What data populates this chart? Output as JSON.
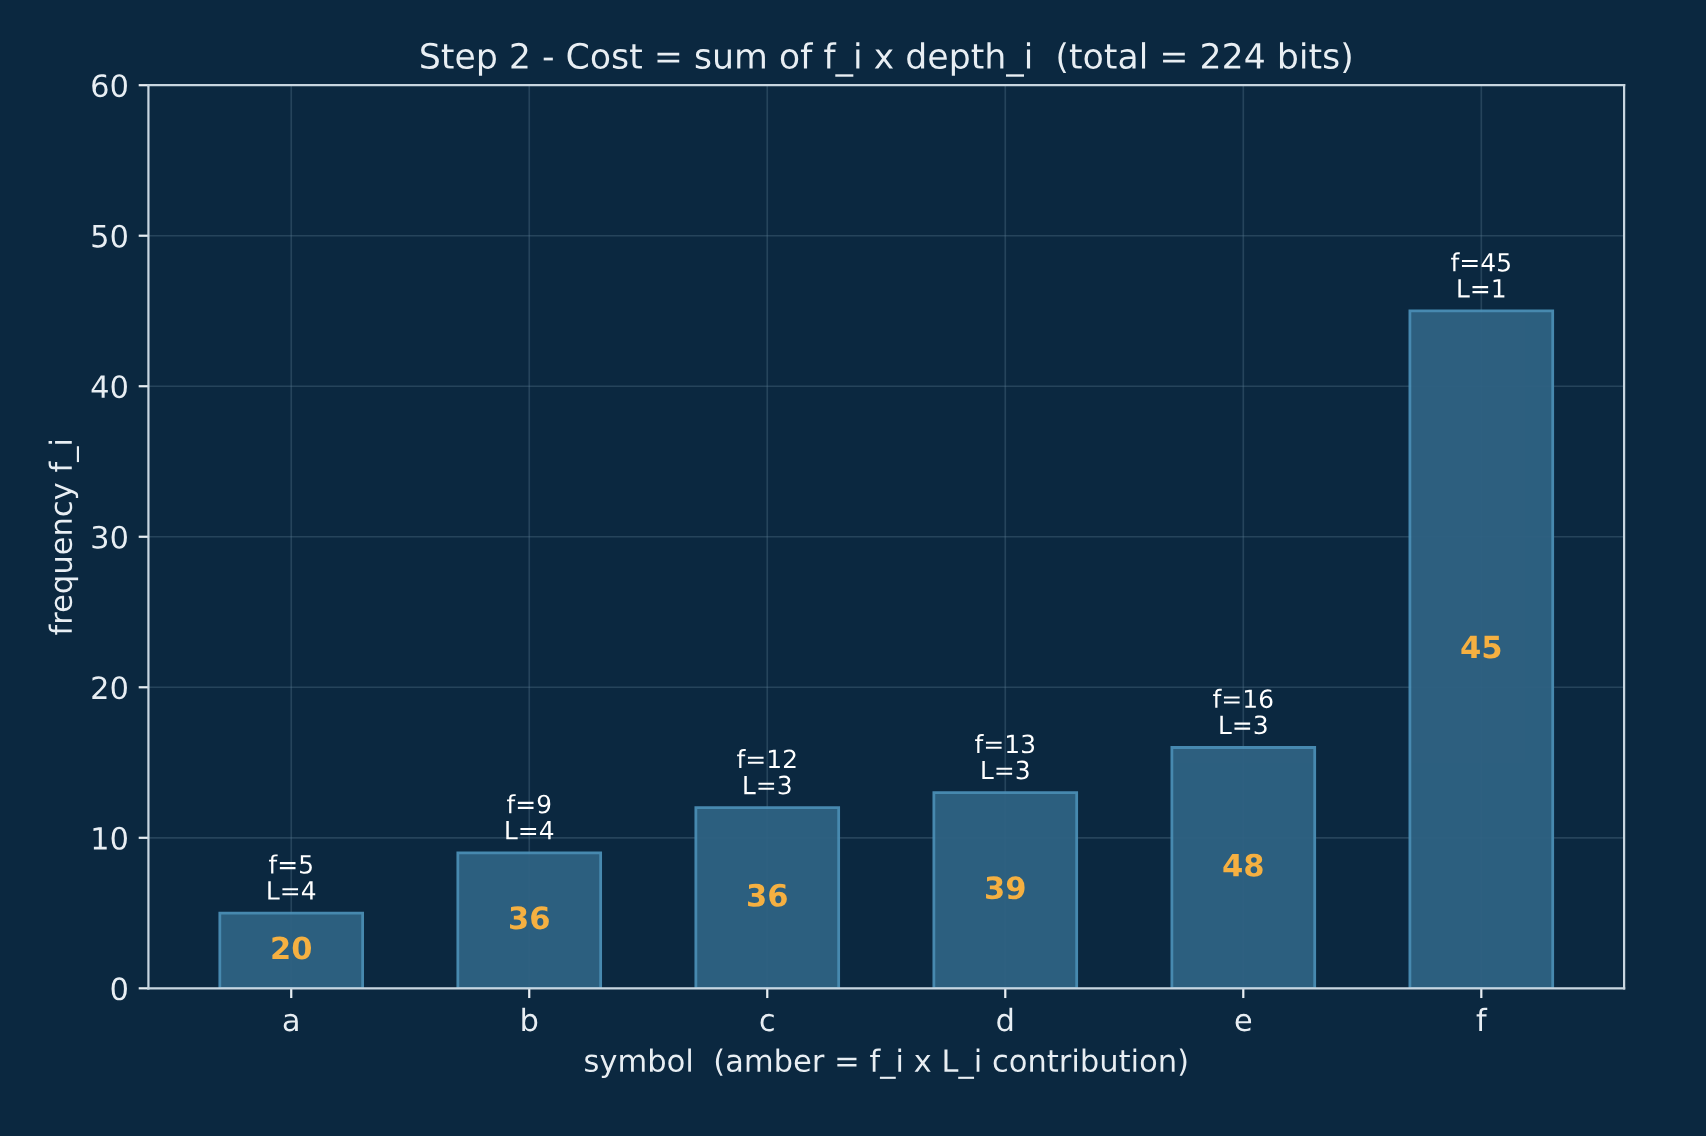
{
  "chart_data": {
    "type": "bar",
    "title": "Step 2 - Cost = sum of f_i x depth_i  (total = 224 bits)",
    "xlabel": "symbol  (amber = f_i x L_i contribution)",
    "ylabel": "frequency f_i",
    "categories": [
      "a",
      "b",
      "c",
      "d",
      "e",
      "f"
    ],
    "values": [
      5,
      9,
      12,
      13,
      16,
      45
    ],
    "color": "#2f6283",
    "value_labels": [
      "f=5\nL=4",
      "f=9\nL=4",
      "f=12\nL=3",
      "f=13\nL=3",
      "f=16\nL=3",
      "f=45\nL=1"
    ],
    "annotations": [
      "20",
      "36",
      "36",
      "39",
      "48",
      "45"
    ],
    "ylim": [
      0,
      60
    ],
    "yticks": [
      0,
      10,
      20,
      30,
      40,
      50,
      60
    ],
    "grid": true
  }
}
